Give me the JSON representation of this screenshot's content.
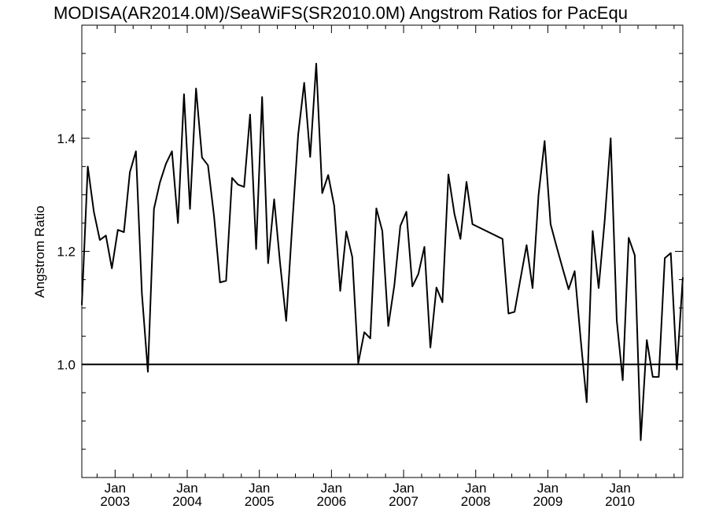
{
  "chart_data": {
    "type": "line",
    "title": "MODISA(AR2014.0M)/SeaWiFS(SR2010.0M)  Angstrom Ratios for PacEqu",
    "xlabel": "",
    "ylabel": "Angstrom Ratio",
    "ylim": [
      0.8,
      1.6
    ],
    "yticks": [
      1.0,
      1.2,
      1.4
    ],
    "ytick_labels": [
      "1.0",
      "1.2",
      "1.4"
    ],
    "xlim": [
      "2002-07-15",
      "2010-11-15"
    ],
    "xtick_dates": [
      "2003-01-01",
      "2004-01-01",
      "2005-01-01",
      "2006-01-01",
      "2007-01-01",
      "2008-01-01",
      "2009-01-01",
      "2010-01-01"
    ],
    "xtick_month_labels": [
      "Jan",
      "Jan",
      "Jan",
      "Jan",
      "Jan",
      "Jan",
      "Jan",
      "Jan"
    ],
    "xtick_year_labels": [
      "2003",
      "2004",
      "2005",
      "2006",
      "2007",
      "2008",
      "2009",
      "2010"
    ],
    "reference_line_y": 1.0,
    "series": [
      {
        "x": [
          "2002-07-15",
          "2002-08-15",
          "2002-09-15",
          "2002-10-15",
          "2002-11-15",
          "2002-12-15",
          "2003-01-15",
          "2003-02-15",
          "2003-03-15",
          "2003-04-15",
          "2003-05-15",
          "2003-06-15",
          "2003-07-15",
          "2003-08-15",
          "2003-09-15",
          "2003-10-15",
          "2003-11-15",
          "2003-12-15",
          "2004-01-15",
          "2004-02-15",
          "2004-03-15",
          "2004-04-15",
          "2004-05-15",
          "2004-06-15",
          "2004-07-15",
          "2004-08-15",
          "2004-09-15",
          "2004-10-15",
          "2004-11-15",
          "2004-12-15",
          "2005-01-15",
          "2005-02-15",
          "2005-03-15",
          "2005-04-15",
          "2005-05-15",
          "2005-06-15",
          "2005-07-15",
          "2005-08-15",
          "2005-09-15",
          "2005-10-15",
          "2005-11-15",
          "2005-12-15",
          "2006-01-15",
          "2006-02-15",
          "2006-03-15",
          "2006-04-15",
          "2006-05-15",
          "2006-06-15",
          "2006-07-15",
          "2006-08-15",
          "2006-09-15",
          "2006-10-15",
          "2006-11-15",
          "2006-12-15",
          "2007-01-15",
          "2007-02-15",
          "2007-03-15",
          "2007-04-15",
          "2007-05-15",
          "2007-06-15",
          "2007-07-15",
          "2007-08-15",
          "2007-09-15",
          "2007-10-15",
          "2007-11-15",
          "2007-12-15",
          "2008-05-15",
          "2008-06-15",
          "2008-07-15",
          "2008-08-15",
          "2008-09-15",
          "2008-10-15",
          "2008-11-15",
          "2008-12-15",
          "2009-01-15",
          "2009-02-15",
          "2009-03-15",
          "2009-04-15",
          "2009-05-15",
          "2009-06-15",
          "2009-07-15",
          "2009-08-15",
          "2009-09-15",
          "2009-10-15",
          "2009-11-15",
          "2009-12-15",
          "2010-01-15",
          "2010-02-15",
          "2010-03-15",
          "2010-04-15",
          "2010-05-15",
          "2010-06-15",
          "2010-07-15",
          "2010-08-15",
          "2010-09-15",
          "2010-10-15",
          "2010-11-15"
        ],
        "values": [
          1.105,
          1.35,
          1.27,
          1.22,
          1.228,
          1.17,
          1.238,
          1.234,
          1.34,
          1.377,
          1.125,
          0.987,
          1.275,
          1.322,
          1.355,
          1.377,
          1.25,
          1.478,
          1.275,
          1.488,
          1.366,
          1.352,
          1.262,
          1.145,
          1.148,
          1.33,
          1.318,
          1.314,
          1.442,
          1.204,
          1.473,
          1.179,
          1.292,
          1.178,
          1.077,
          1.245,
          1.406,
          1.498,
          1.367,
          1.532,
          1.303,
          1.335,
          1.28,
          1.13,
          1.235,
          1.19,
          1.002,
          1.057,
          1.046,
          1.276,
          1.236,
          1.068,
          1.14,
          1.245,
          1.27,
          1.138,
          1.16,
          1.208,
          1.03,
          1.136,
          1.11,
          1.336,
          1.266,
          1.222,
          1.323,
          1.248,
          1.222,
          1.09,
          1.093,
          1.152,
          1.211,
          1.135,
          1.3,
          1.395,
          1.248,
          1.208,
          1.17,
          1.133,
          1.165,
          1.045,
          0.933,
          1.236,
          1.135,
          1.255,
          1.4,
          1.078,
          0.972,
          1.224,
          1.193,
          0.866,
          1.043,
          0.978,
          0.978,
          1.188,
          1.197,
          0.991,
          1.154
        ]
      }
    ]
  }
}
